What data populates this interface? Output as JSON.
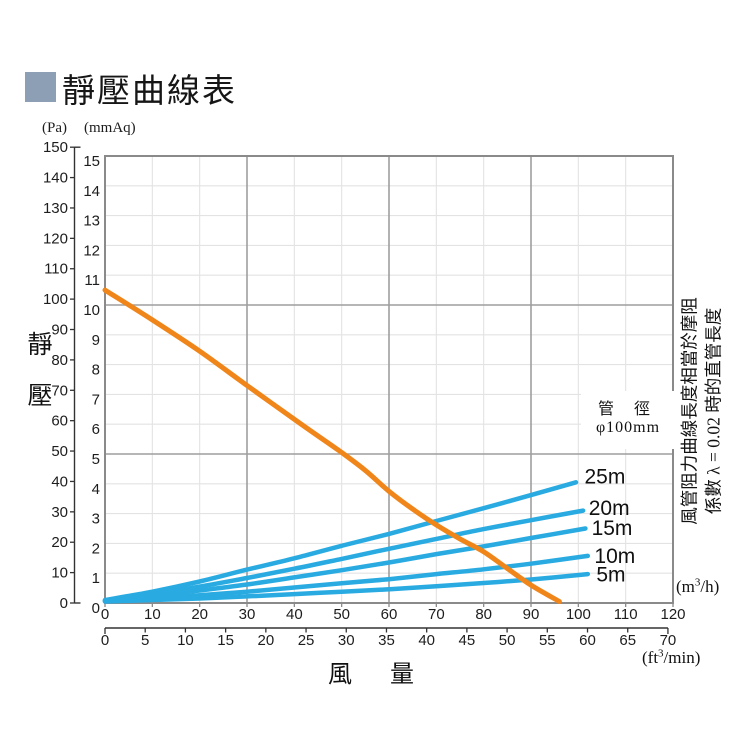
{
  "header": {
    "title": "靜壓曲線表",
    "accent_color": "#8C9FB4"
  },
  "y_axis_title": "靜壓",
  "x_axis_title": "風 量",
  "chart_data": {
    "type": "line",
    "title": "靜壓曲線表",
    "ylabel": "靜壓",
    "xlabel": "風量",
    "y_axis_pa": {
      "unit": "(Pa)",
      "min": 0,
      "max": 150,
      "ticks": [
        0,
        10,
        20,
        30,
        40,
        50,
        60,
        70,
        80,
        90,
        100,
        110,
        120,
        130,
        140,
        150
      ]
    },
    "y_axis_mmaq": {
      "unit": "(mmAq)",
      "min": 0,
      "max": 15,
      "ticks": [
        0,
        1,
        2,
        3,
        4,
        5,
        6,
        7,
        8,
        9,
        10,
        11,
        12,
        13,
        14,
        15
      ]
    },
    "x_axis_m3h": {
      "min": 0,
      "max": 120,
      "ticks": [
        0,
        10,
        20,
        30,
        40,
        50,
        60,
        70,
        80,
        90,
        100,
        110,
        120
      ],
      "unit_parts": {
        "pre": "(m",
        "sup": "3",
        "post": "/h)"
      }
    },
    "x_axis_ft3min": {
      "min": 0,
      "max": 70,
      "ticks": [
        0,
        5,
        10,
        15,
        20,
        25,
        30,
        35,
        40,
        45,
        50,
        55,
        60,
        65,
        70
      ],
      "m3h_per_unit": 1.699,
      "unit_parts": {
        "pre": "(ft",
        "sup": "3",
        "post": "/min)"
      }
    },
    "grid": {
      "light_color": "#e3e3e3",
      "dark_color": "#9e9e9e",
      "frame_color": "#8a8a8a",
      "dark_x_m3h": [
        30,
        60,
        90
      ],
      "dark_y_mmaq": [
        5,
        10
      ]
    },
    "annotation_pipe": {
      "line1": "管 徑",
      "line2": "φ100mm"
    },
    "side_note": {
      "line1": "風管阻力曲線長度相當於摩阻",
      "line2": "係數 λ = 0.02 時的直管長度"
    },
    "series": [
      {
        "name": "static-pressure-curve",
        "label": "",
        "color": "#F08519",
        "width": 5,
        "points": [
          [
            0,
            10.5
          ],
          [
            10,
            9.5
          ],
          [
            20,
            8.45
          ],
          [
            30,
            7.3
          ],
          [
            41,
            6.05
          ],
          [
            50,
            5.05
          ],
          [
            55,
            4.45
          ],
          [
            60,
            3.75
          ],
          [
            65,
            3.15
          ],
          [
            70,
            2.62
          ],
          [
            75,
            2.15
          ],
          [
            80,
            1.72
          ],
          [
            85,
            1.16
          ],
          [
            90,
            0.6
          ],
          [
            96,
            0.05
          ]
        ]
      },
      {
        "name": "duct-25m",
        "label": "25m",
        "color": "#29ABE2",
        "width": 4.5,
        "label_pos": [
          101.3,
          4.25
        ],
        "points": [
          [
            0,
            0.1
          ],
          [
            10,
            0.38
          ],
          [
            20,
            0.72
          ],
          [
            30,
            1.12
          ],
          [
            40,
            1.5
          ],
          [
            50,
            1.92
          ],
          [
            60,
            2.32
          ],
          [
            70,
            2.75
          ],
          [
            80,
            3.18
          ],
          [
            90,
            3.62
          ],
          [
            99.5,
            4.05
          ]
        ]
      },
      {
        "name": "duct-20m",
        "label": "20m",
        "color": "#29ABE2",
        "width": 4.5,
        "label_pos": [
          102.2,
          3.18
        ],
        "points": [
          [
            0,
            0.09
          ],
          [
            10,
            0.3
          ],
          [
            20,
            0.55
          ],
          [
            30,
            0.84
          ],
          [
            40,
            1.15
          ],
          [
            50,
            1.48
          ],
          [
            60,
            1.82
          ],
          [
            70,
            2.15
          ],
          [
            80,
            2.48
          ],
          [
            90,
            2.78
          ],
          [
            101,
            3.1
          ]
        ]
      },
      {
        "name": "duct-15m",
        "label": "15m",
        "color": "#29ABE2",
        "width": 4.5,
        "label_pos": [
          102.8,
          2.52
        ],
        "points": [
          [
            0,
            0.08
          ],
          [
            10,
            0.24
          ],
          [
            20,
            0.42
          ],
          [
            30,
            0.62
          ],
          [
            40,
            0.86
          ],
          [
            50,
            1.1
          ],
          [
            60,
            1.36
          ],
          [
            70,
            1.64
          ],
          [
            80,
            1.9
          ],
          [
            90,
            2.18
          ],
          [
            101.5,
            2.5
          ]
        ]
      },
      {
        "name": "duct-10m",
        "label": "10m",
        "color": "#29ABE2",
        "width": 4.5,
        "label_pos": [
          103.4,
          1.58
        ],
        "points": [
          [
            0,
            0.06
          ],
          [
            10,
            0.15
          ],
          [
            20,
            0.26
          ],
          [
            30,
            0.38
          ],
          [
            40,
            0.52
          ],
          [
            50,
            0.66
          ],
          [
            60,
            0.8
          ],
          [
            70,
            0.97
          ],
          [
            80,
            1.13
          ],
          [
            90,
            1.32
          ],
          [
            102,
            1.58
          ]
        ]
      },
      {
        "name": "duct-5m",
        "label": "5m",
        "color": "#29ABE2",
        "width": 4.5,
        "label_pos": [
          103.8,
          0.95
        ],
        "points": [
          [
            0,
            0.05
          ],
          [
            10,
            0.1
          ],
          [
            20,
            0.15
          ],
          [
            30,
            0.22
          ],
          [
            40,
            0.3
          ],
          [
            50,
            0.38
          ],
          [
            60,
            0.46
          ],
          [
            70,
            0.56
          ],
          [
            80,
            0.67
          ],
          [
            90,
            0.79
          ],
          [
            102,
            0.97
          ]
        ]
      }
    ]
  }
}
